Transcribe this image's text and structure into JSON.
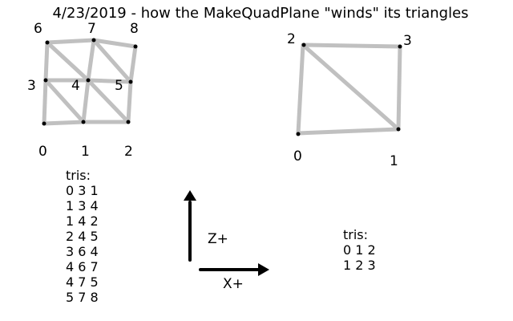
{
  "title": "4/23/2019 - how the MakeQuadPlane \"winds\" its triangles",
  "colors": {
    "edge": "#c0c0c0",
    "vertex": "#000000",
    "arrow": "#000000",
    "text": "#000000",
    "background": "#ffffff"
  },
  "left_grid": {
    "vertex_labels": [
      "0",
      "1",
      "2",
      "3",
      "4",
      "5",
      "6",
      "7",
      "8"
    ],
    "tris_heading": "tris:",
    "tris": [
      "0 3 1",
      "1 3 4",
      "1 4 2",
      "2 4 5",
      "3 6 4",
      "4 6 7",
      "4 7 5",
      "5 7 8"
    ]
  },
  "right_quad": {
    "vertex_labels": [
      "0",
      "1",
      "2",
      "3"
    ],
    "tris_heading": "tris:",
    "tris": [
      "0 1 2",
      "1 2 3"
    ]
  },
  "axes": {
    "z_label": "Z+",
    "x_label": "X+"
  }
}
